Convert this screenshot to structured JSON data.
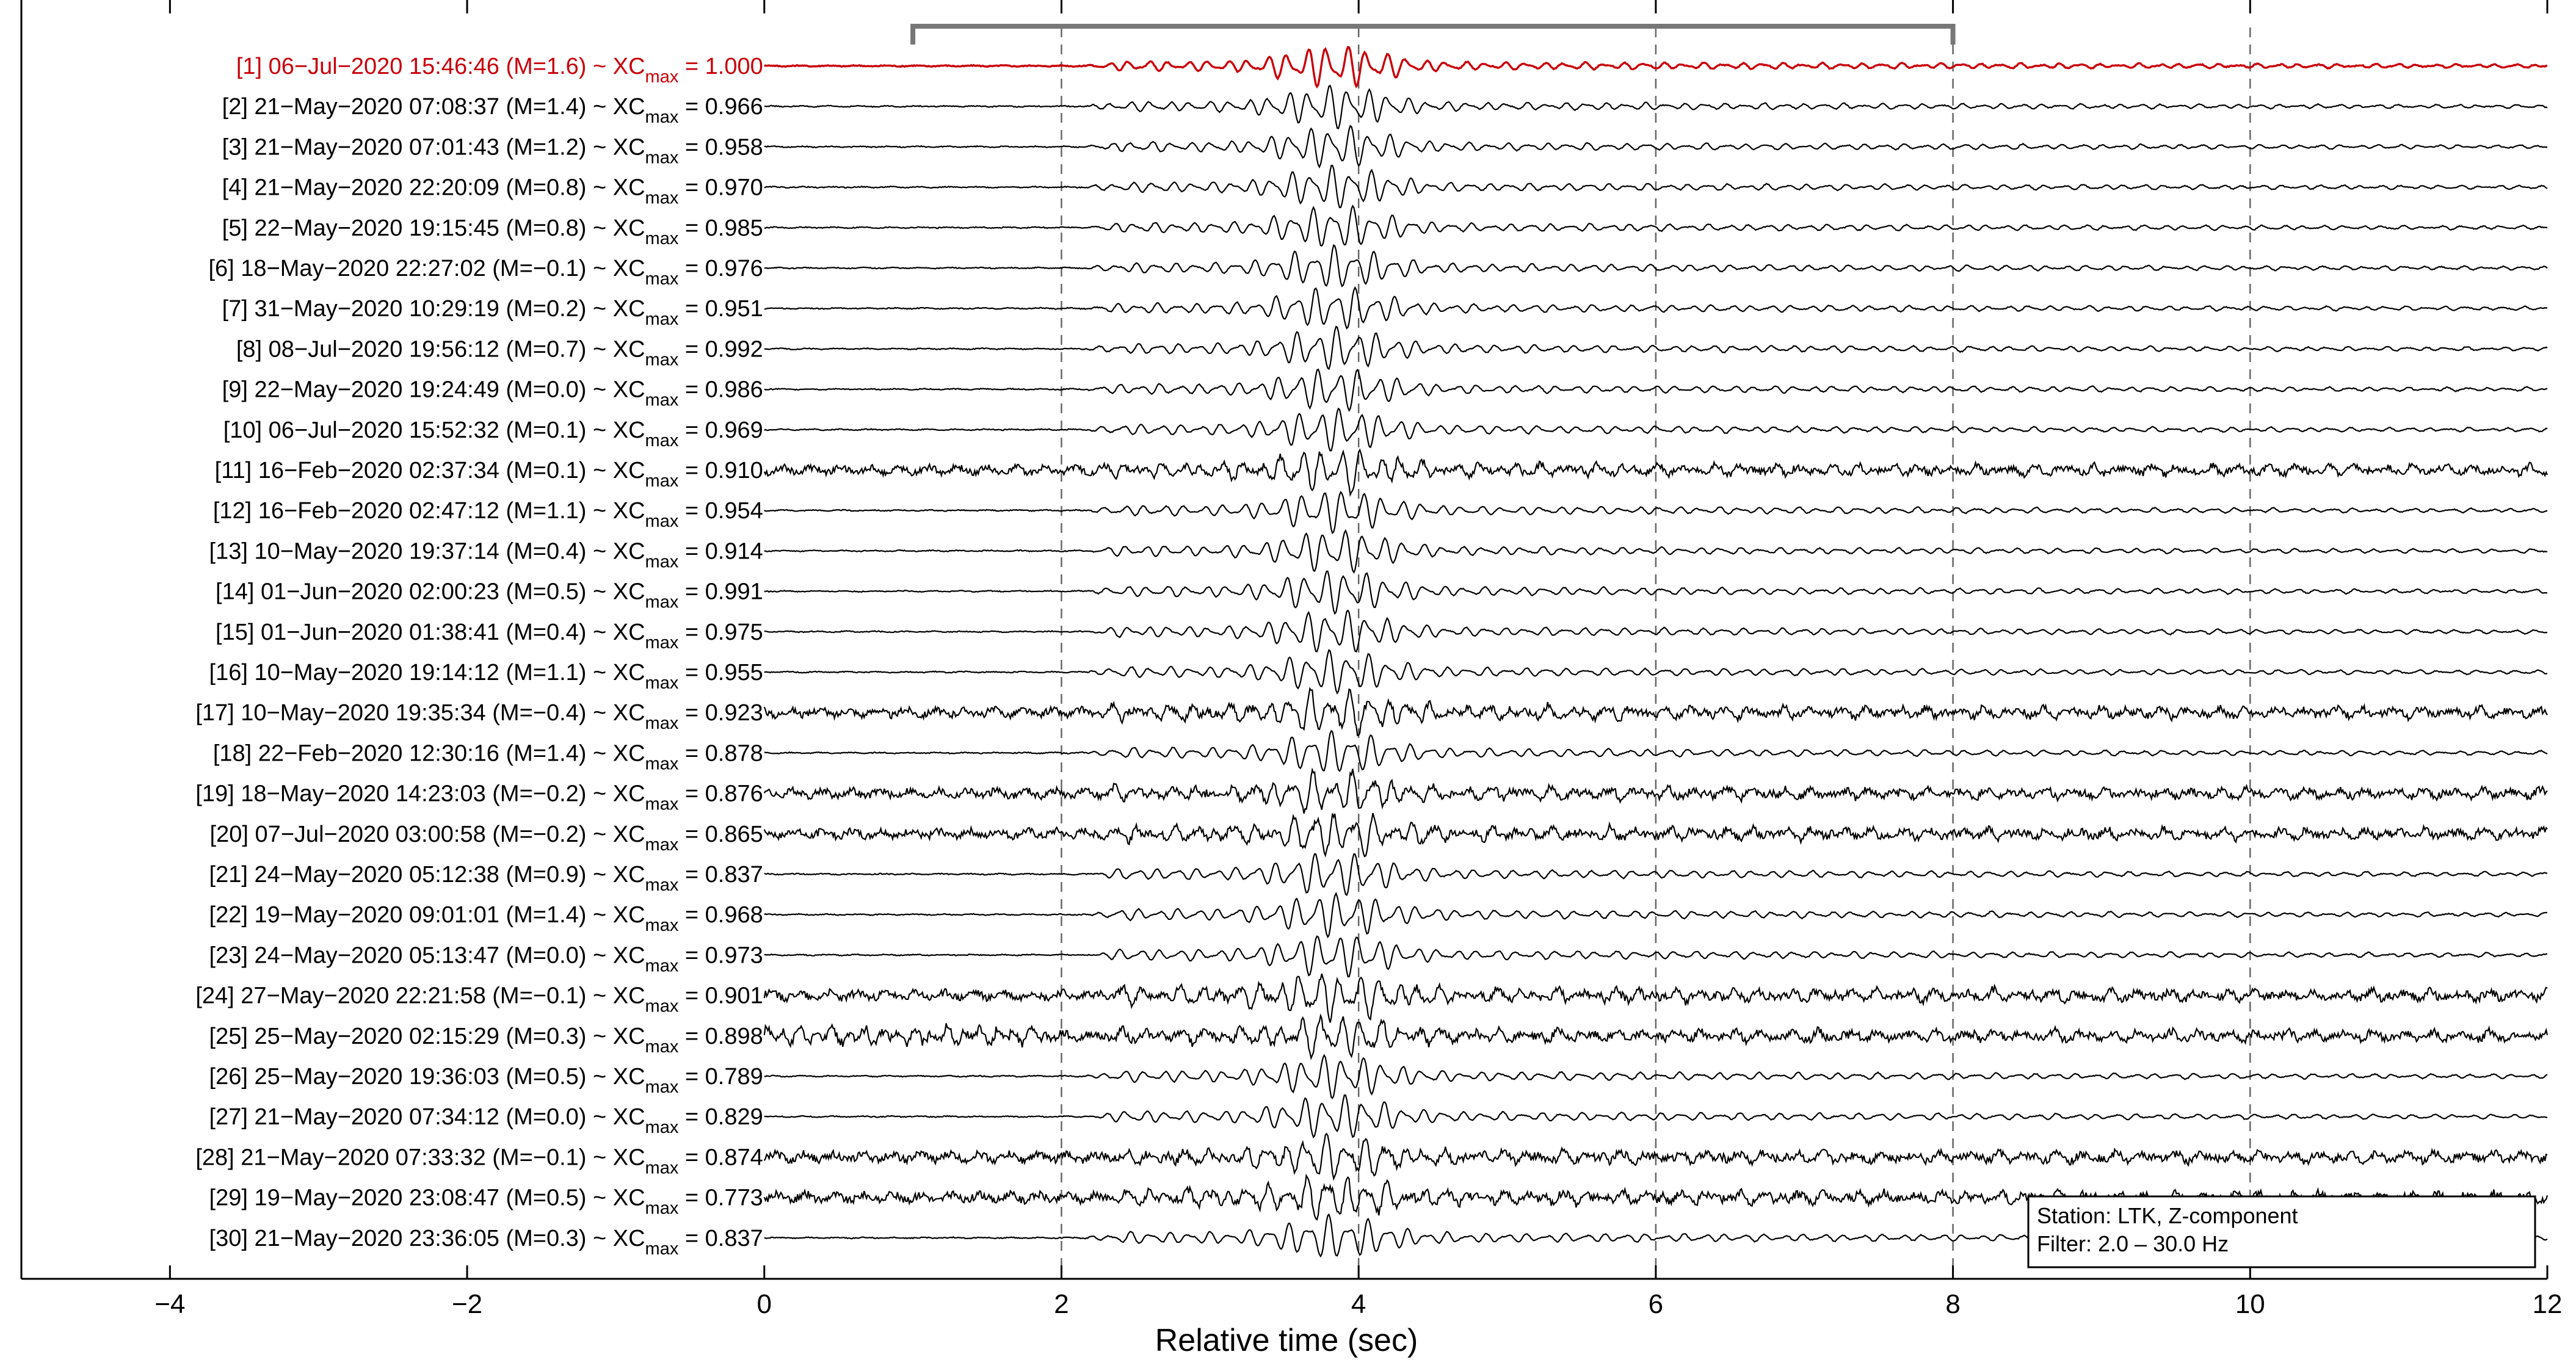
{
  "chart_data": {
    "type": "line",
    "subtype": "seismic-waveform-stack",
    "xlabel": "Relative time (sec)",
    "xlim": [
      -5,
      12
    ],
    "xticks": [
      -4,
      -2,
      0,
      2,
      4,
      6,
      8,
      10,
      12
    ],
    "xtick_labels": [
      "−4",
      "−2",
      "0",
      "2",
      "4",
      "6",
      "8",
      "10",
      "12"
    ],
    "vertical_gridlines_x": [
      2,
      4,
      6,
      8,
      10
    ],
    "window_bracket": {
      "start": 1,
      "end": 8
    },
    "xc_label_prefix": "XC",
    "xc_label_subscript": "max",
    "reference_color": "#c8000a",
    "trace_color": "#000000",
    "legend": {
      "position": "bottom-right",
      "lines": [
        "Station: LTK, Z-component",
        "Filter: 2.0 – 30.0 Hz"
      ]
    },
    "traces": [
      {
        "idx": 1,
        "label": "[1] 06−Jul−2020 15:46:46 (M=1.6) ~ ",
        "xc": "= 1.000",
        "reference": true
      },
      {
        "idx": 2,
        "label": "[2] 21−May−2020 07:08:37 (M=1.4) ~ ",
        "xc": "= 0.966"
      },
      {
        "idx": 3,
        "label": "[3] 21−May−2020 07:01:43 (M=1.2) ~ ",
        "xc": "= 0.958"
      },
      {
        "idx": 4,
        "label": "[4] 21−May−2020 22:20:09 (M=0.8) ~ ",
        "xc": "= 0.970"
      },
      {
        "idx": 5,
        "label": "[5] 22−May−2020 19:15:45 (M=0.8) ~ ",
        "xc": "= 0.985"
      },
      {
        "idx": 6,
        "label": "[6] 18−May−2020 22:27:02 (M=−0.1) ~ ",
        "xc": "= 0.976"
      },
      {
        "idx": 7,
        "label": "[7] 31−May−2020 10:29:19 (M=0.2) ~ ",
        "xc": "= 0.951"
      },
      {
        "idx": 8,
        "label": "[8] 08−Jul−2020 19:56:12 (M=0.7) ~ ",
        "xc": "= 0.992"
      },
      {
        "idx": 9,
        "label": "[9] 22−May−2020 19:24:49 (M=0.0) ~ ",
        "xc": "= 0.986"
      },
      {
        "idx": 10,
        "label": "[10] 06−Jul−2020 15:52:32 (M=0.1) ~ ",
        "xc": "= 0.969"
      },
      {
        "idx": 11,
        "label": "[11] 16−Feb−2020 02:37:34 (M=0.1) ~ ",
        "xc": "= 0.910",
        "noisy": true
      },
      {
        "idx": 12,
        "label": "[12] 16−Feb−2020 02:47:12 (M=1.1) ~ ",
        "xc": "= 0.954"
      },
      {
        "idx": 13,
        "label": "[13] 10−May−2020 19:37:14 (M=0.4) ~ ",
        "xc": "= 0.914"
      },
      {
        "idx": 14,
        "label": "[14] 01−Jun−2020 02:00:23 (M=0.5) ~ ",
        "xc": "= 0.991"
      },
      {
        "idx": 15,
        "label": "[15] 01−Jun−2020 01:38:41 (M=0.4) ~ ",
        "xc": "= 0.975"
      },
      {
        "idx": 16,
        "label": "[16] 10−May−2020 19:14:12 (M=1.1) ~ ",
        "xc": "= 0.955"
      },
      {
        "idx": 17,
        "label": "[17] 10−May−2020 19:35:34 (M=−0.4) ~ ",
        "xc": "= 0.923",
        "noisy": true
      },
      {
        "idx": 18,
        "label": "[18] 22−Feb−2020 12:30:16 (M=1.4) ~ ",
        "xc": "= 0.878"
      },
      {
        "idx": 19,
        "label": "[19] 18−May−2020 14:23:03 (M=−0.2) ~ ",
        "xc": "= 0.876",
        "noisy": true
      },
      {
        "idx": 20,
        "label": "[20] 07−Jul−2020 03:00:58 (M=−0.2) ~ ",
        "xc": "= 0.865",
        "noisy": true
      },
      {
        "idx": 21,
        "label": "[21] 24−May−2020 05:12:38 (M=0.9) ~ ",
        "xc": "= 0.837"
      },
      {
        "idx": 22,
        "label": "[22] 19−May−2020 09:01:01 (M=1.4) ~ ",
        "xc": "= 0.968"
      },
      {
        "idx": 23,
        "label": "[23] 24−May−2020 05:13:47 (M=0.0) ~ ",
        "xc": "= 0.973"
      },
      {
        "idx": 24,
        "label": "[24] 27−May−2020 22:21:58 (M=−0.1) ~ ",
        "xc": "= 0.901",
        "noisy": true
      },
      {
        "idx": 25,
        "label": "[25] 25−May−2020 02:15:29 (M=0.3) ~ ",
        "xc": "= 0.898",
        "noisy": true
      },
      {
        "idx": 26,
        "label": "[26] 25−May−2020 19:36:03 (M=0.5) ~ ",
        "xc": "= 0.789"
      },
      {
        "idx": 27,
        "label": "[27] 21−May−2020 07:34:12 (M=0.0) ~ ",
        "xc": "= 0.829"
      },
      {
        "idx": 28,
        "label": "[28] 21−May−2020 07:33:32 (M=−0.1) ~ ",
        "xc": "= 0.874",
        "noisy": true
      },
      {
        "idx": 29,
        "label": "[29] 19−May−2020 23:08:47 (M=0.5) ~ ",
        "xc": "= 0.773",
        "noisy": true
      },
      {
        "idx": 30,
        "label": "[30] 21−May−2020 23:36:05 (M=0.3) ~ ",
        "xc": "= 0.837"
      }
    ]
  }
}
